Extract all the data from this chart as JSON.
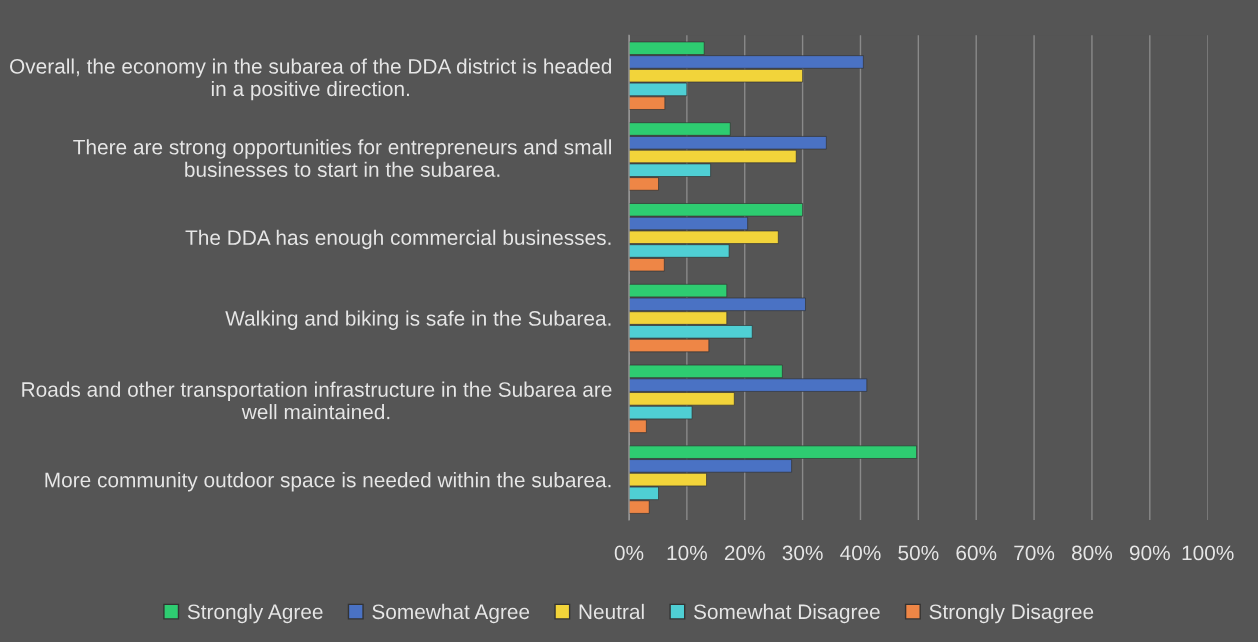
{
  "chart_data": {
    "type": "bar",
    "orientation": "horizontal",
    "categories": [
      "Overall, the economy in the subarea of the DDA district is headed in a positive direction.",
      "There are strong opportunities for entrepreneurs and small businesses to start in the subarea.",
      "The DDA has enough commercial businesses.",
      "Walking and biking is safe in the Subarea.",
      "Roads and other transportation infrastructure in the Subarea are well maintained.",
      "More community outdoor space is needed within the subarea."
    ],
    "series": [
      {
        "name": "Strongly Agree",
        "color": "#2ecc71",
        "values": [
          13.0,
          17.5,
          30.0,
          16.9,
          26.5,
          49.7
        ]
      },
      {
        "name": "Somewhat Agree",
        "color": "#4a72c4",
        "values": [
          40.5,
          34.1,
          20.5,
          30.5,
          41.1,
          28.1
        ]
      },
      {
        "name": "Neutral",
        "color": "#f2d43a",
        "values": [
          30.0,
          28.9,
          25.8,
          16.9,
          18.2,
          13.4
        ]
      },
      {
        "name": "Somewhat Disagree",
        "color": "#4fcfd4",
        "values": [
          10.0,
          14.1,
          17.3,
          21.3,
          10.9,
          5.1
        ]
      },
      {
        "name": "Strongly Disagree",
        "color": "#ee8646",
        "values": [
          6.2,
          5.1,
          6.1,
          13.8,
          3.0,
          3.5
        ]
      }
    ],
    "xlim": [
      0,
      100
    ],
    "xticks": [
      {
        "value": 0,
        "label": "0%"
      },
      {
        "value": 10,
        "label": "10%"
      },
      {
        "value": 20,
        "label": "20%"
      },
      {
        "value": 30,
        "label": "30%"
      },
      {
        "value": 40,
        "label": "40%"
      },
      {
        "value": 50,
        "label": "50%"
      },
      {
        "value": 60,
        "label": "60%"
      },
      {
        "value": 70,
        "label": "70%"
      },
      {
        "value": 80,
        "label": "80%"
      },
      {
        "value": 90,
        "label": "90%"
      },
      {
        "value": 100,
        "label": "100%"
      }
    ],
    "grid": "x",
    "legend": "bottom"
  }
}
